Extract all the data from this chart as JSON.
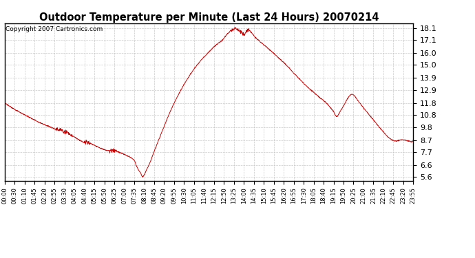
{
  "title": "Outdoor Temperature per Minute (Last 24 Hours) 20070214",
  "copyright_text": "Copyright 2007 Cartronics.com",
  "line_color": "#cc0000",
  "bg_color": "#ffffff",
  "plot_bg_color": "#ffffff",
  "grid_color": "#bbbbbb",
  "yticks": [
    5.6,
    6.6,
    7.7,
    8.7,
    9.8,
    10.8,
    11.8,
    12.9,
    13.9,
    15.0,
    16.0,
    17.1,
    18.1
  ],
  "ylim": [
    5.3,
    18.5
  ],
  "xlim": [
    0,
    1440
  ],
  "keypoints": [
    [
      0,
      11.8
    ],
    [
      20,
      11.5
    ],
    [
      40,
      11.2
    ],
    [
      60,
      10.95
    ],
    [
      80,
      10.7
    ],
    [
      100,
      10.45
    ],
    [
      120,
      10.2
    ],
    [
      140,
      10.0
    ],
    [
      160,
      9.8
    ],
    [
      175,
      9.65
    ],
    [
      185,
      9.55
    ],
    [
      195,
      9.5
    ],
    [
      200,
      9.55
    ],
    [
      210,
      9.4
    ],
    [
      220,
      9.35
    ],
    [
      230,
      9.2
    ],
    [
      240,
      9.05
    ],
    [
      250,
      8.9
    ],
    [
      260,
      8.75
    ],
    [
      270,
      8.6
    ],
    [
      280,
      8.5
    ],
    [
      288,
      8.55
    ],
    [
      295,
      8.5
    ],
    [
      305,
      8.4
    ],
    [
      315,
      8.28
    ],
    [
      325,
      8.15
    ],
    [
      335,
      8.05
    ],
    [
      345,
      7.95
    ],
    [
      355,
      7.88
    ],
    [
      365,
      7.82
    ],
    [
      375,
      7.85
    ],
    [
      382,
      7.82
    ],
    [
      390,
      7.78
    ],
    [
      400,
      7.72
    ],
    [
      410,
      7.62
    ],
    [
      420,
      7.52
    ],
    [
      430,
      7.42
    ],
    [
      440,
      7.3
    ],
    [
      448,
      7.18
    ],
    [
      455,
      7.05
    ],
    [
      460,
      6.85
    ],
    [
      462,
      6.65
    ],
    [
      464,
      6.55
    ],
    [
      466,
      6.45
    ],
    [
      468,
      6.35
    ],
    [
      470,
      6.25
    ],
    [
      472,
      6.18
    ],
    [
      474,
      6.1
    ],
    [
      476,
      6.05
    ],
    [
      478,
      6.0
    ],
    [
      479,
      5.95
    ],
    [
      480,
      5.88
    ],
    [
      481,
      5.82
    ],
    [
      482,
      5.76
    ],
    [
      483,
      5.7
    ],
    [
      484,
      5.65
    ],
    [
      485,
      5.62
    ],
    [
      486,
      5.6
    ],
    [
      487,
      5.61
    ],
    [
      488,
      5.65
    ],
    [
      490,
      5.72
    ],
    [
      493,
      5.85
    ],
    [
      497,
      6.05
    ],
    [
      502,
      6.3
    ],
    [
      508,
      6.6
    ],
    [
      515,
      7.0
    ],
    [
      522,
      7.45
    ],
    [
      530,
      7.95
    ],
    [
      540,
      8.55
    ],
    [
      550,
      9.15
    ],
    [
      560,
      9.75
    ],
    [
      570,
      10.35
    ],
    [
      580,
      10.9
    ],
    [
      590,
      11.45
    ],
    [
      600,
      11.95
    ],
    [
      610,
      12.4
    ],
    [
      620,
      12.85
    ],
    [
      630,
      13.28
    ],
    [
      640,
      13.68
    ],
    [
      650,
      14.05
    ],
    [
      660,
      14.42
    ],
    [
      670,
      14.75
    ],
    [
      680,
      15.05
    ],
    [
      690,
      15.35
    ],
    [
      700,
      15.6
    ],
    [
      710,
      15.85
    ],
    [
      718,
      16.05
    ],
    [
      726,
      16.25
    ],
    [
      733,
      16.42
    ],
    [
      740,
      16.58
    ],
    [
      747,
      16.72
    ],
    [
      754,
      16.85
    ],
    [
      760,
      16.95
    ],
    [
      765,
      17.05
    ],
    [
      770,
      17.15
    ],
    [
      774,
      17.28
    ],
    [
      778,
      17.4
    ],
    [
      782,
      17.52
    ],
    [
      786,
      17.63
    ],
    [
      790,
      17.73
    ],
    [
      793,
      17.8
    ],
    [
      796,
      17.87
    ],
    [
      799,
      17.93
    ],
    [
      802,
      17.98
    ],
    [
      805,
      18.02
    ],
    [
      808,
      18.07
    ],
    [
      811,
      18.1
    ],
    [
      814,
      18.09
    ],
    [
      817,
      18.06
    ],
    [
      820,
      18.02
    ],
    [
      823,
      17.97
    ],
    [
      827,
      17.9
    ],
    [
      831,
      17.82
    ],
    [
      835,
      17.75
    ],
    [
      840,
      17.67
    ],
    [
      845,
      17.58
    ],
    [
      850,
      17.72
    ],
    [
      854,
      17.85
    ],
    [
      857,
      17.92
    ],
    [
      860,
      17.95
    ],
    [
      862,
      17.92
    ],
    [
      865,
      17.85
    ],
    [
      868,
      17.75
    ],
    [
      873,
      17.6
    ],
    [
      878,
      17.45
    ],
    [
      885,
      17.28
    ],
    [
      892,
      17.12
    ],
    [
      900,
      16.95
    ],
    [
      910,
      16.75
    ],
    [
      920,
      16.55
    ],
    [
      930,
      16.35
    ],
    [
      940,
      16.15
    ],
    [
      950,
      15.95
    ],
    [
      960,
      15.72
    ],
    [
      970,
      15.5
    ],
    [
      980,
      15.28
    ],
    [
      990,
      15.05
    ],
    [
      1000,
      14.8
    ],
    [
      1010,
      14.55
    ],
    [
      1020,
      14.3
    ],
    [
      1030,
      14.05
    ],
    [
      1040,
      13.8
    ],
    [
      1050,
      13.55
    ],
    [
      1060,
      13.3
    ],
    [
      1070,
      13.08
    ],
    [
      1080,
      12.88
    ],
    [
      1090,
      12.68
    ],
    [
      1100,
      12.48
    ],
    [
      1110,
      12.28
    ],
    [
      1115,
      12.18
    ],
    [
      1120,
      12.08
    ],
    [
      1125,
      11.98
    ],
    [
      1130,
      11.88
    ],
    [
      1135,
      11.78
    ],
    [
      1140,
      11.65
    ],
    [
      1143,
      11.55
    ],
    [
      1146,
      11.45
    ],
    [
      1149,
      11.38
    ],
    [
      1152,
      11.3
    ],
    [
      1155,
      11.22
    ],
    [
      1158,
      11.15
    ],
    [
      1160,
      11.05
    ],
    [
      1162,
      10.95
    ],
    [
      1164,
      10.85
    ],
    [
      1166,
      10.78
    ],
    [
      1168,
      10.72
    ],
    [
      1170,
      10.68
    ],
    [
      1173,
      10.72
    ],
    [
      1176,
      10.82
    ],
    [
      1179,
      10.95
    ],
    [
      1183,
      11.12
    ],
    [
      1188,
      11.32
    ],
    [
      1193,
      11.52
    ],
    [
      1198,
      11.72
    ],
    [
      1203,
      11.95
    ],
    [
      1208,
      12.15
    ],
    [
      1213,
      12.35
    ],
    [
      1218,
      12.48
    ],
    [
      1222,
      12.55
    ],
    [
      1225,
      12.55
    ],
    [
      1228,
      12.5
    ],
    [
      1232,
      12.42
    ],
    [
      1237,
      12.28
    ],
    [
      1242,
      12.12
    ],
    [
      1248,
      11.92
    ],
    [
      1255,
      11.7
    ],
    [
      1262,
      11.48
    ],
    [
      1270,
      11.25
    ],
    [
      1278,
      11.02
    ],
    [
      1286,
      10.78
    ],
    [
      1294,
      10.55
    ],
    [
      1302,
      10.32
    ],
    [
      1310,
      10.08
    ],
    [
      1318,
      9.85
    ],
    [
      1326,
      9.62
    ],
    [
      1334,
      9.4
    ],
    [
      1342,
      9.18
    ],
    [
      1350,
      8.98
    ],
    [
      1358,
      8.82
    ],
    [
      1365,
      8.72
    ],
    [
      1372,
      8.65
    ],
    [
      1378,
      8.62
    ],
    [
      1383,
      8.62
    ],
    [
      1387,
      8.65
    ],
    [
      1390,
      8.68
    ],
    [
      1393,
      8.7
    ],
    [
      1398,
      8.72
    ],
    [
      1403,
      8.72
    ],
    [
      1408,
      8.7
    ],
    [
      1413,
      8.68
    ],
    [
      1418,
      8.65
    ],
    [
      1423,
      8.62
    ],
    [
      1428,
      8.6
    ],
    [
      1433,
      8.58
    ],
    [
      1438,
      8.57
    ],
    [
      1440,
      8.7
    ]
  ],
  "xtick_labels": [
    "00:00",
    "00:30",
    "01:10",
    "01:45",
    "02:20",
    "02:55",
    "03:30",
    "04:05",
    "04:40",
    "05:15",
    "05:50",
    "06:25",
    "07:00",
    "07:35",
    "08:10",
    "08:45",
    "09:20",
    "09:55",
    "10:30",
    "11:05",
    "11:40",
    "12:15",
    "12:50",
    "13:25",
    "14:00",
    "14:35",
    "15:10",
    "15:45",
    "16:20",
    "16:55",
    "17:30",
    "18:05",
    "18:40",
    "19:15",
    "19:50",
    "20:25",
    "21:00",
    "21:35",
    "22:10",
    "22:45",
    "23:20",
    "23:55"
  ]
}
